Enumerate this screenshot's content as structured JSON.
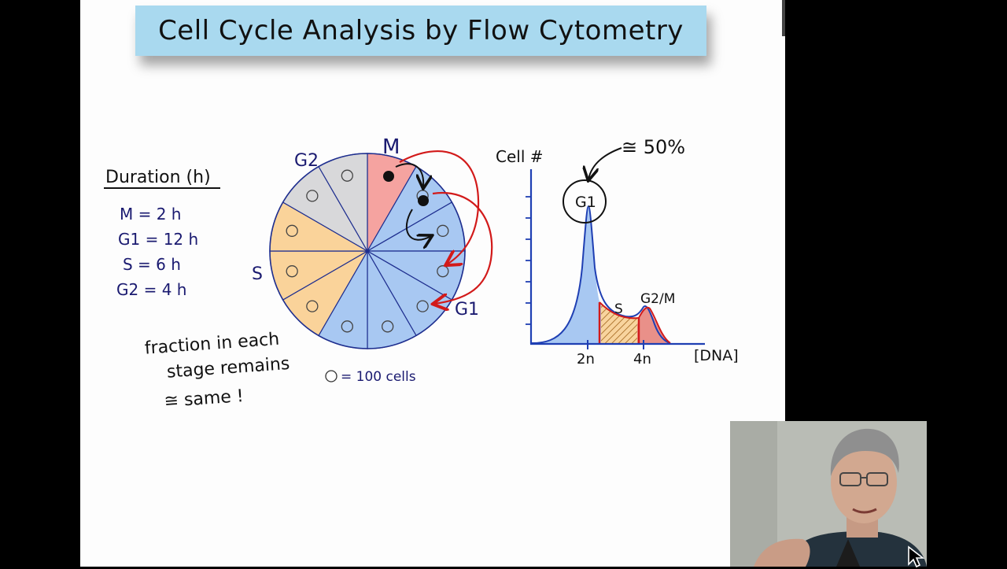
{
  "title": "Cell Cycle Analysis by Flow Cytometry",
  "duration": {
    "heading": "Duration (h)",
    "rows": [
      "M = 2 h",
      "G1 = 12 h",
      "S = 6 h",
      "G2 = 4 h"
    ]
  },
  "note": [
    "fraction in each",
    "stage remains",
    "≅ same !"
  ],
  "cycle": {
    "labels": {
      "m": "M",
      "g1": "G1",
      "s": "S",
      "g2": "G2"
    },
    "legend": "= 100 cells",
    "colors": {
      "m": "#f5a3a0",
      "g1": "#a8c8f2",
      "s": "#fad39a",
      "g2": "#d8d8da"
    }
  },
  "histogram": {
    "y_label": "Cell #",
    "x_label": "[DNA]",
    "ticks": [
      "2n",
      "4n"
    ],
    "peak_label": "G1",
    "peak_annotation": "≅ 50%",
    "s_label": "S",
    "g2m_label": "G2/M"
  }
}
